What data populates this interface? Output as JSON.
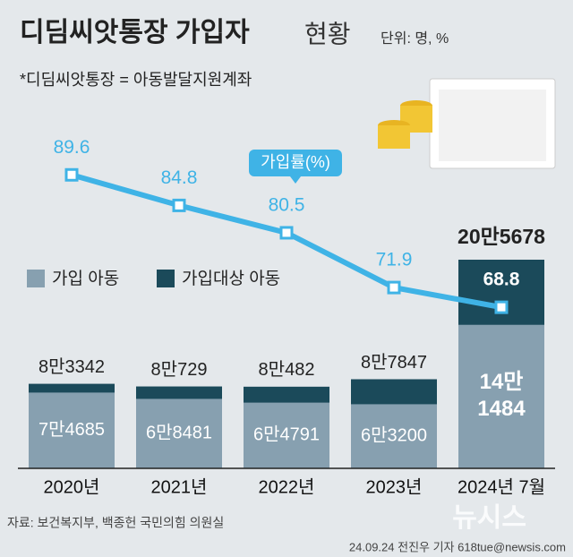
{
  "chart_data": {
    "type": "bar",
    "title": "디딤씨앗통장 가입자",
    "title_light": "현황",
    "unit": "단위: 명, %",
    "note": "*디딤씨앗통장 = 아동발달지원계좌",
    "source": "자료: 보건복지부, 백종헌 국민의힘 의원실",
    "credit": "24.09.24 전진우 기자 618tue@newsis.com",
    "watermark": "뉴시스",
    "categories": [
      "2020년",
      "2021년",
      "2022년",
      "2023년",
      "2024년 7월"
    ],
    "ylim": [
      0,
      373400
    ],
    "y2lim": [
      43.5,
      103
    ],
    "series": [
      {
        "name": "가입 아동",
        "color": "#87a0b0",
        "values": [
          74685,
          68481,
          64791,
          63200,
          141484
        ],
        "value_labels": [
          "7만4685",
          "6만8481",
          "6만4791",
          "6만3200",
          "14만\n1484"
        ]
      },
      {
        "name": "가입대상 아동",
        "color": "#1b4a5a",
        "values": [
          83342,
          80729,
          80482,
          87847,
          205678
        ],
        "value_labels": [
          "8만3342",
          "8만729",
          "8만482",
          "8만7847",
          "20만5678"
        ]
      },
      {
        "name": "가입률(%)",
        "color": "#3fb3e6",
        "axis": "y2",
        "values": [
          89.6,
          84.8,
          80.5,
          71.9,
          68.8
        ]
      }
    ]
  }
}
